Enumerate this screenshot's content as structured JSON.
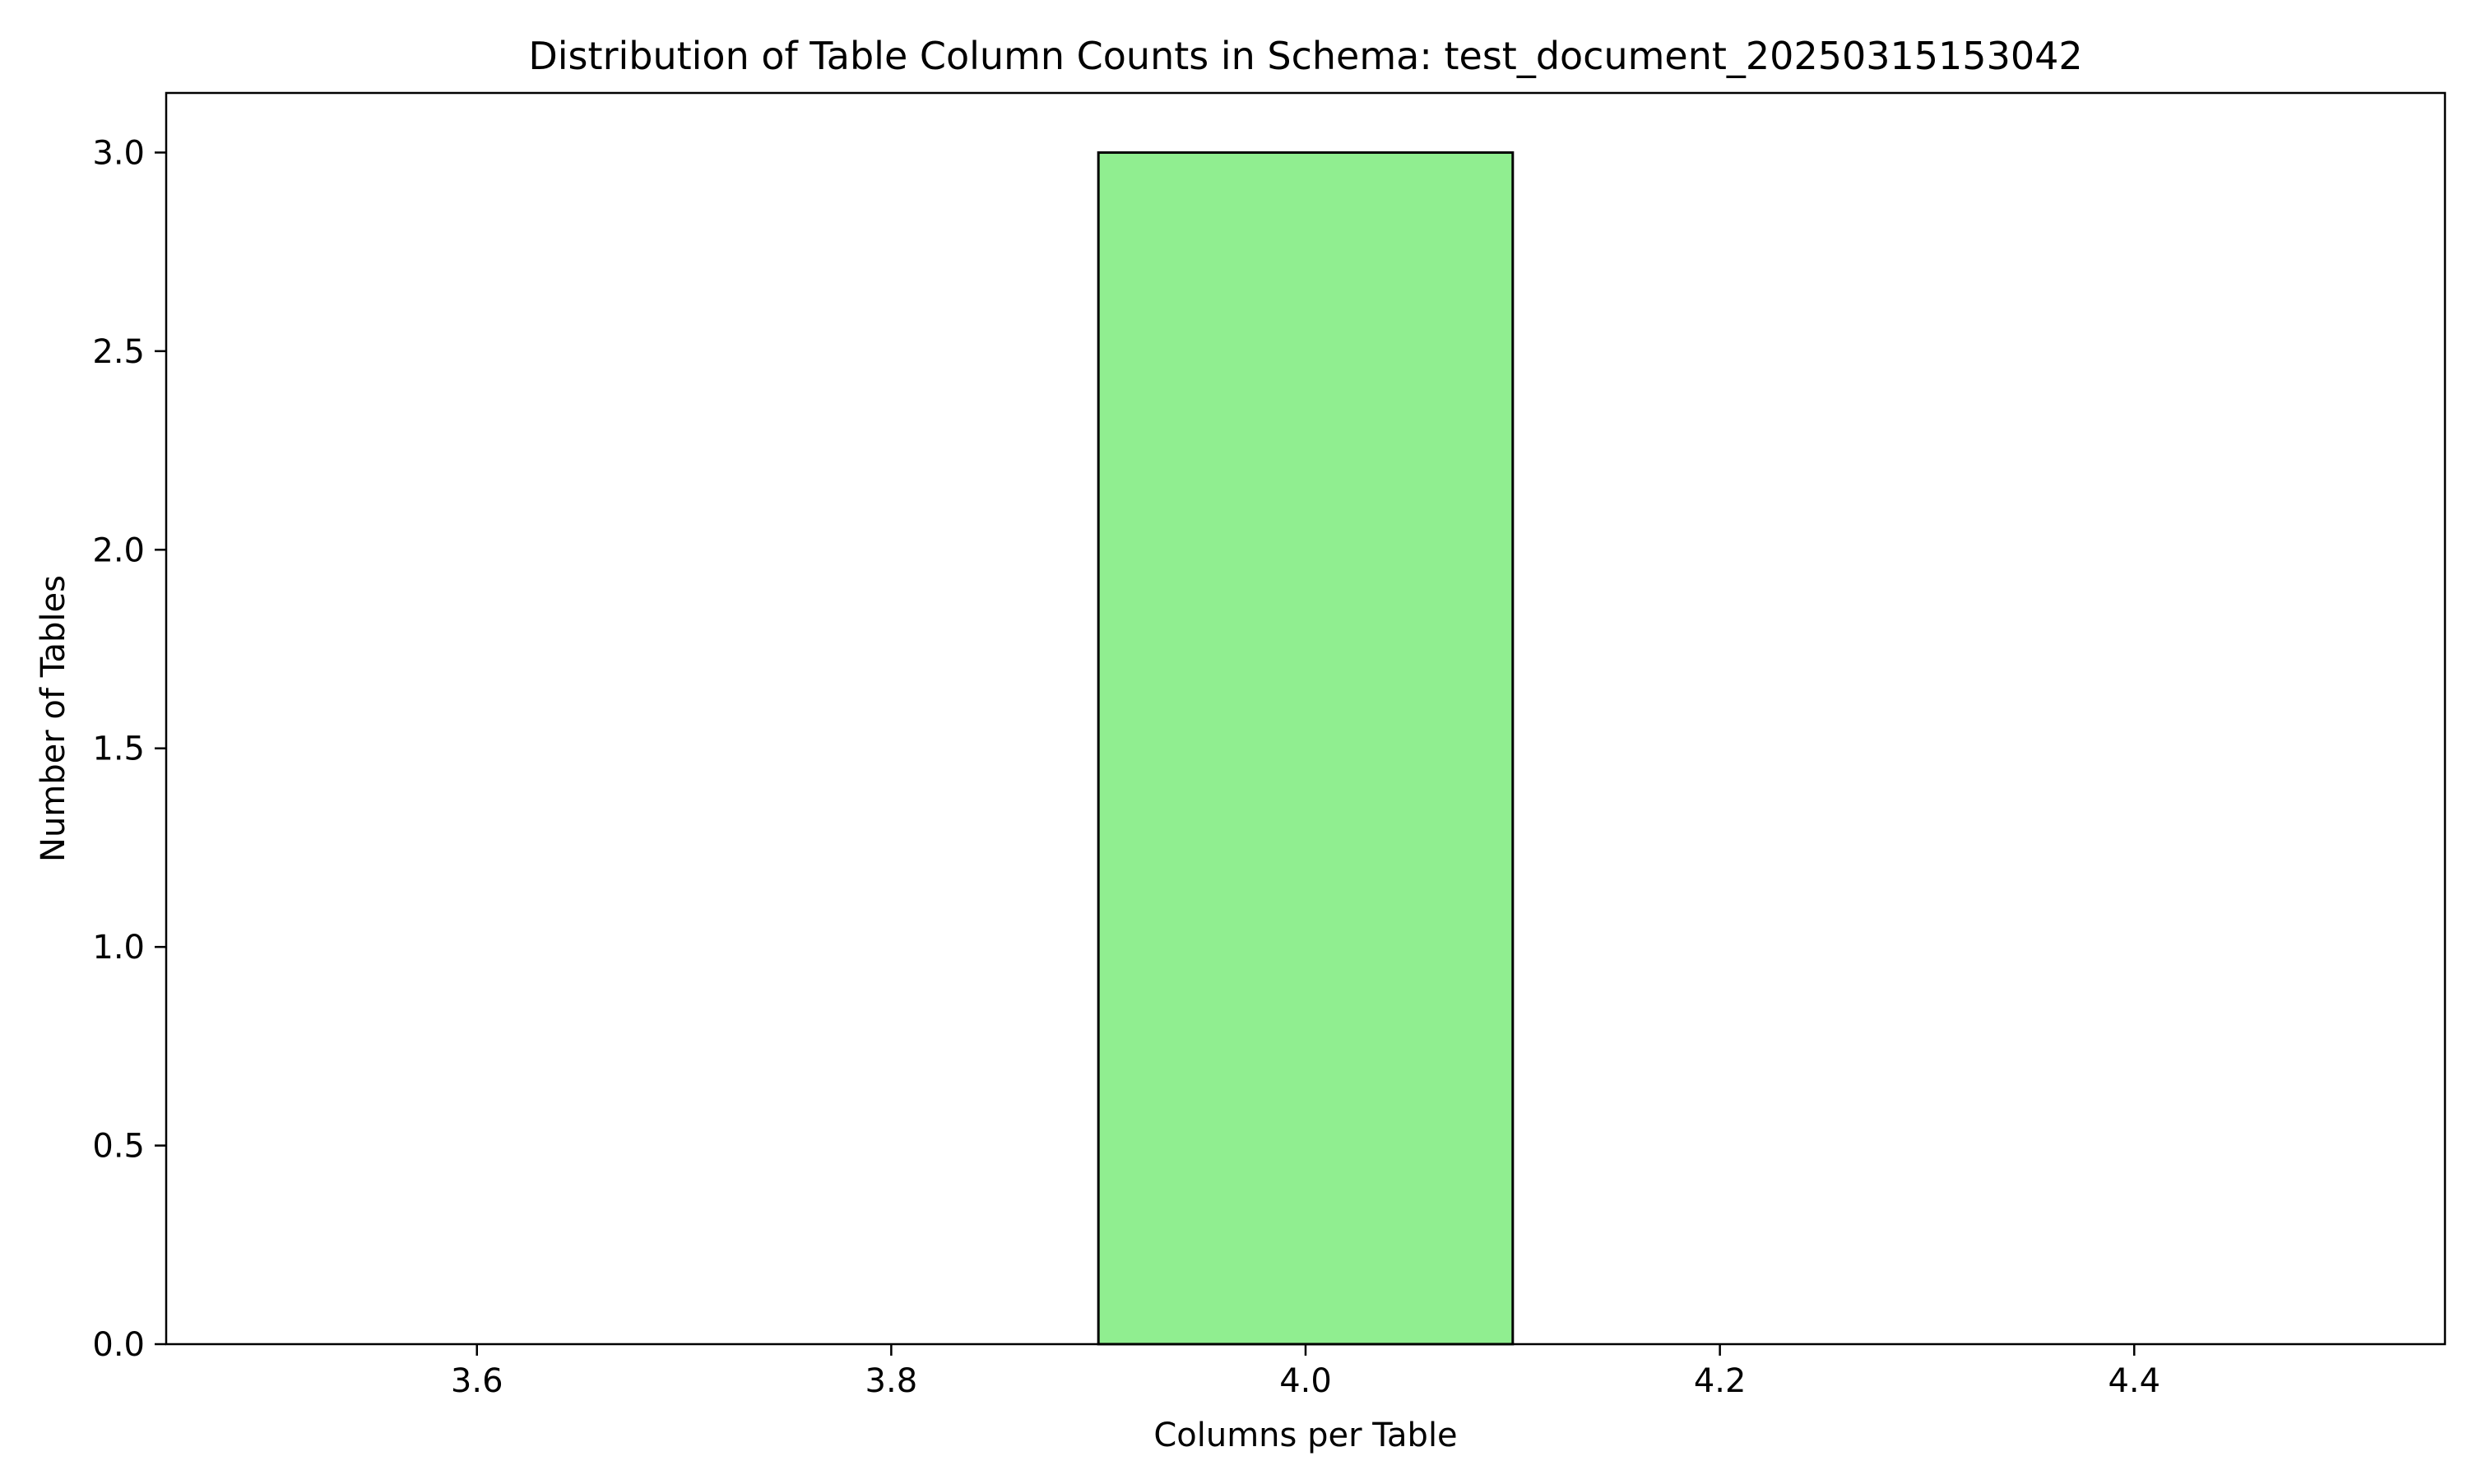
{
  "chart_data": {
    "type": "bar",
    "title": "Distribution of Table Column Counts in Schema: test_document_20250315153042",
    "xlabel": "Columns per Table",
    "ylabel": "Number of Tables",
    "bins": [
      {
        "x0": 3.5,
        "x1": 3.7,
        "count": 0
      },
      {
        "x0": 3.7,
        "x1": 3.9,
        "count": 0
      },
      {
        "x0": 3.9,
        "x1": 4.1,
        "count": 3
      },
      {
        "x0": 4.1,
        "x1": 4.3,
        "count": 0
      },
      {
        "x0": 4.3,
        "x1": 4.5,
        "count": 0
      }
    ],
    "xlim": [
      3.45,
      4.55
    ],
    "ylim": [
      0,
      3.15
    ],
    "x_ticks": [
      {
        "value": 3.6,
        "label": "3.6"
      },
      {
        "value": 3.8,
        "label": "3.8"
      },
      {
        "value": 4.0,
        "label": "4.0"
      },
      {
        "value": 4.2,
        "label": "4.2"
      },
      {
        "value": 4.4,
        "label": "4.4"
      }
    ],
    "y_ticks": [
      {
        "value": 0.0,
        "label": "0.0"
      },
      {
        "value": 0.5,
        "label": "0.5"
      },
      {
        "value": 1.0,
        "label": "1.0"
      },
      {
        "value": 1.5,
        "label": "1.5"
      },
      {
        "value": 2.0,
        "label": "2.0"
      },
      {
        "value": 2.5,
        "label": "2.5"
      },
      {
        "value": 3.0,
        "label": "3.0"
      }
    ],
    "grid": false,
    "bar_color": "#90ee90",
    "edge_color": "#000000"
  }
}
